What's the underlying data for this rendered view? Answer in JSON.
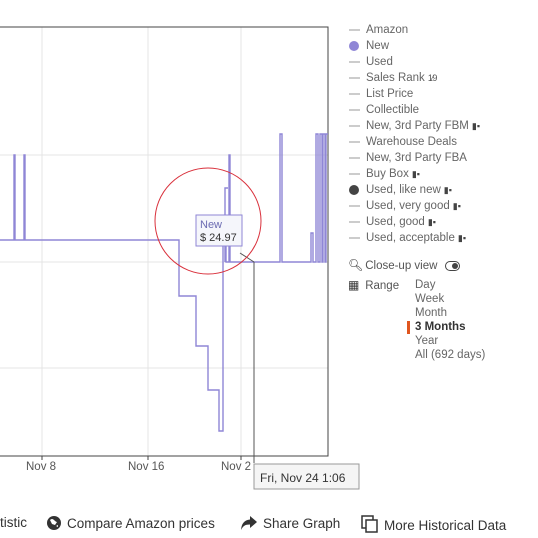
{
  "chart_data": {
    "type": "line",
    "x_tick_labels": [
      "Nov 8",
      "Nov 16",
      "Nov 2"
    ],
    "series": [
      {
        "name": "New",
        "color": "#8f86d6"
      }
    ],
    "tooltip": {
      "series": "New",
      "price": "$ 24.97"
    },
    "crosshair_label": "Fri, Nov 24 1:06"
  },
  "legend": {
    "items": [
      {
        "label": "Amazon",
        "color": "#cccccc",
        "style": "line"
      },
      {
        "label": "New",
        "color": "#8f86d6",
        "style": "dot"
      },
      {
        "label": "Used",
        "color": "#cccccc",
        "style": "line"
      },
      {
        "label": "Sales Rank",
        "color": "#cccccc",
        "style": "line",
        "suffix": "1⁄9"
      },
      {
        "label": "List Price",
        "color": "#cccccc",
        "style": "line"
      },
      {
        "label": "Collectible",
        "color": "#cccccc",
        "style": "line"
      },
      {
        "label": "New, 3rd Party FBM",
        "color": "#cccccc",
        "style": "line",
        "truck": true
      },
      {
        "label": "Warehouse Deals",
        "color": "#cccccc",
        "style": "line"
      },
      {
        "label": "New, 3rd Party FBA",
        "color": "#cccccc",
        "style": "line"
      },
      {
        "label": "Buy Box",
        "color": "#cccccc",
        "style": "line",
        "truck": true
      },
      {
        "label": "Used, like new",
        "color": "#444444",
        "style": "dot",
        "truck": true
      },
      {
        "label": "Used, very good",
        "color": "#cccccc",
        "style": "line",
        "truck": true
      },
      {
        "label": "Used, good",
        "color": "#cccccc",
        "style": "line",
        "truck": true
      },
      {
        "label": "Used, acceptable",
        "color": "#cccccc",
        "style": "line",
        "truck": true
      }
    ]
  },
  "closeup": {
    "label": "Close-up view"
  },
  "range": {
    "label": "Range",
    "options": [
      "Day",
      "Week",
      "Month",
      "3 Months",
      "Year",
      "All (692 days)"
    ],
    "selected": "3 Months"
  },
  "footer": {
    "statistic": "tistic",
    "compare": "Compare Amazon prices",
    "share": "Share Graph",
    "history": "More Historical Data"
  },
  "colors": {
    "series": "#8f86d6",
    "highlight_circle": "#d9313c"
  }
}
